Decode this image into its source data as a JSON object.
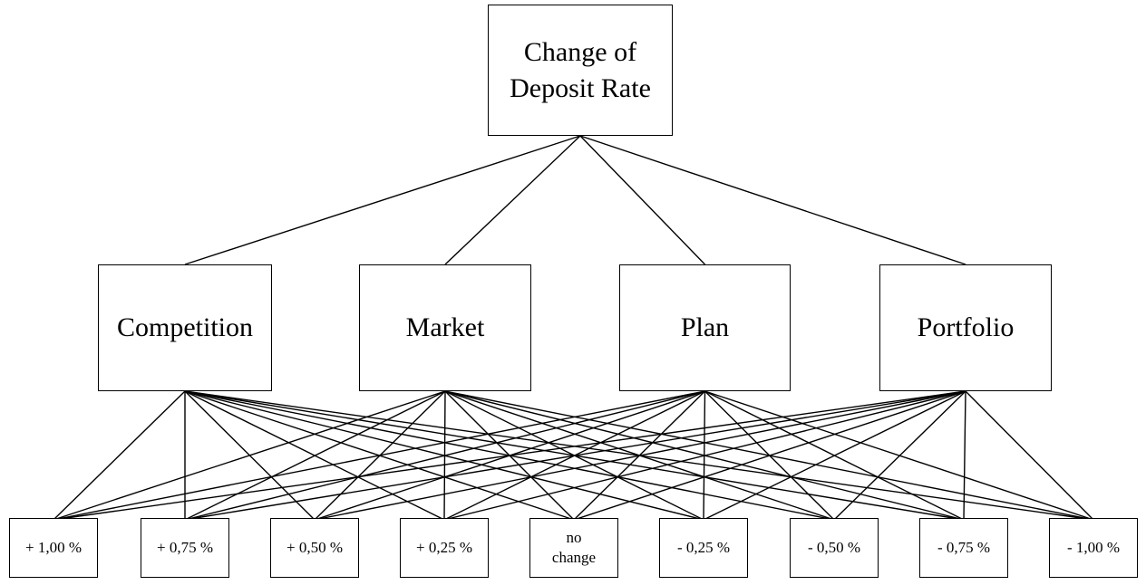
{
  "goal": {
    "label": "Change of Deposit Rate"
  },
  "criteria": [
    {
      "label": "Competition"
    },
    {
      "label": "Market"
    },
    {
      "label": "Plan"
    },
    {
      "label": "Portfolio"
    }
  ],
  "alternatives": [
    {
      "label": "+ 1,00 %"
    },
    {
      "label": "+ 0,75 %"
    },
    {
      "label": "+ 0,50 %"
    },
    {
      "label": "+ 0,25 %"
    },
    {
      "label": "no change"
    },
    {
      "label": "- 0,25 %"
    },
    {
      "label": "- 0,50 %"
    },
    {
      "label": "- 0,75 %"
    },
    {
      "label": "- 1,00 %"
    }
  ]
}
